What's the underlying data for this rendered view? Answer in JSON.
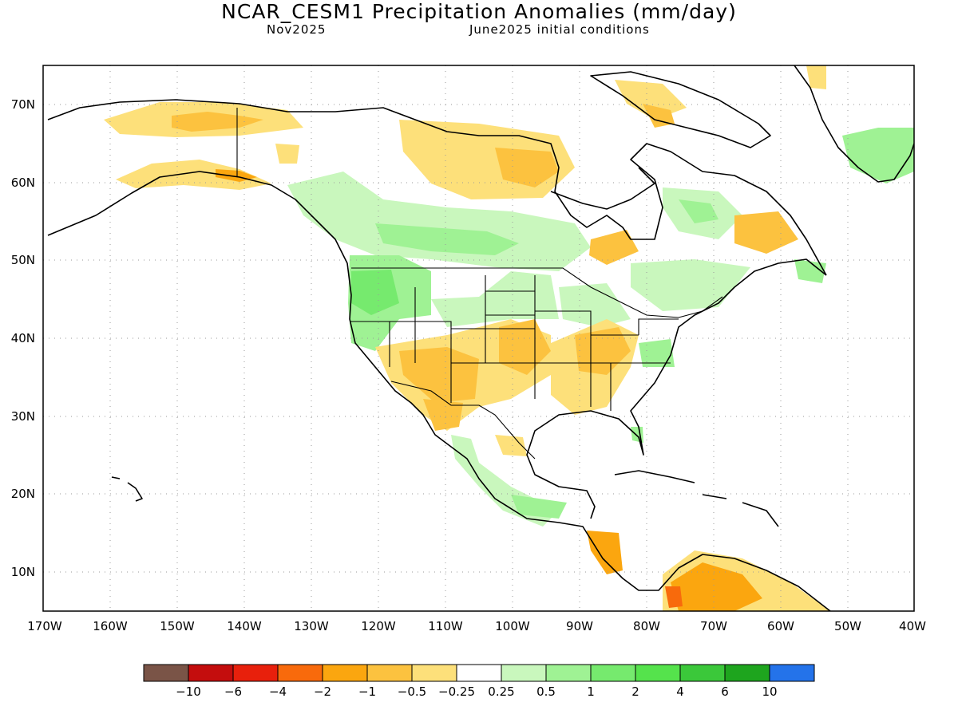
{
  "header": {
    "title": "NCAR_CESM1 Precipitation Anomalies (mm/day)",
    "month": "Nov2025",
    "init": "June2025 initial conditions"
  },
  "map": {
    "longitude_labels": [
      "170W",
      "160W",
      "150W",
      "140W",
      "130W",
      "120W",
      "110W",
      "100W",
      "90W",
      "80W",
      "70W",
      "60W",
      "50W",
      "40W"
    ],
    "latitude_labels": [
      "70N",
      "60N",
      "50N",
      "40N",
      "30N",
      "20N",
      "10N"
    ],
    "extent": {
      "lon_min": -170,
      "lon_max": -40,
      "lat_min": 5,
      "lat_max": 75
    },
    "grid": "dotted"
  },
  "colorbar": {
    "colors": [
      "#7a5447",
      "#c40d0d",
      "#e8200c",
      "#f86a0c",
      "#fba60f",
      "#fcc23f",
      "#fde07a",
      "#ffffff",
      "#c9f7bd",
      "#9ff294",
      "#76ea6e",
      "#55e34c",
      "#3bc83a",
      "#1ea51e",
      "#2473ea"
    ],
    "labels": [
      "−10",
      "−6",
      "−4",
      "−2",
      "−1",
      "−0.5",
      "−0.25",
      "0.25",
      "0.5",
      "1",
      "2",
      "4",
      "6",
      "10"
    ]
  }
}
